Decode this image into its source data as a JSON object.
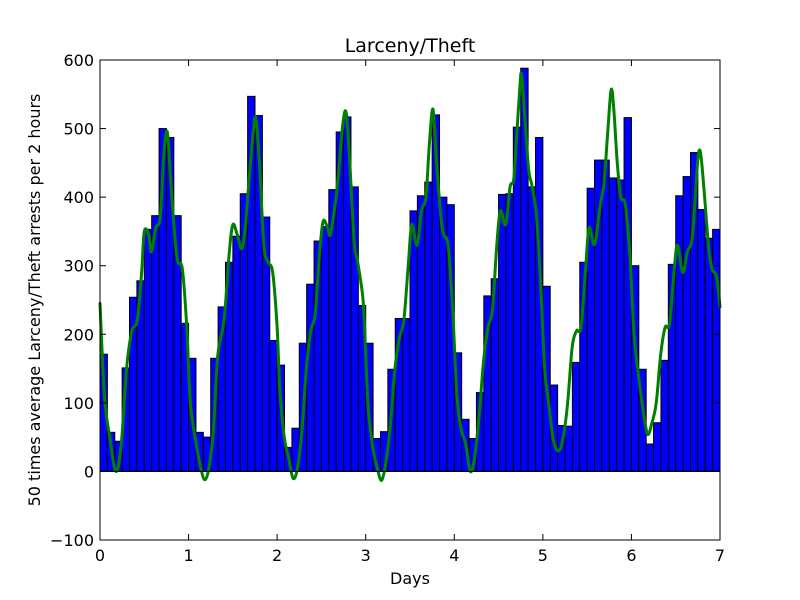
{
  "chart_data": {
    "type": "bar",
    "title": "Larceny/Theft",
    "xlabel": "Days",
    "ylabel": "50 times average Larceny/Theft arrests per 2 hours",
    "xlim": [
      0,
      7
    ],
    "ylim": [
      -100,
      600
    ],
    "x_ticks": [
      "0",
      "1",
      "2",
      "3",
      "4",
      "5",
      "6",
      "7"
    ],
    "y_ticks": [
      "−100",
      "0",
      "100",
      "200",
      "300",
      "400",
      "500",
      "600"
    ],
    "grid": false,
    "bar_color": "#0000ff",
    "line_color": "#008000",
    "bin_width_days": 0.0833,
    "bars": [
      171,
      57,
      44,
      151,
      254,
      278,
      353,
      373,
      500,
      487,
      373,
      216,
      165,
      57,
      50,
      165,
      240,
      305,
      343,
      405,
      547,
      519,
      371,
      191,
      155,
      35,
      63,
      187,
      273,
      336,
      357,
      411,
      495,
      517,
      415,
      242,
      187,
      48,
      58,
      149,
      223,
      223,
      380,
      402,
      422,
      520,
      400,
      389,
      173,
      76,
      48,
      115,
      256,
      281,
      404,
      405,
      502,
      588,
      415,
      487,
      270,
      126,
      67,
      66,
      159,
      305,
      413,
      454,
      454,
      428,
      425,
      516,
      300,
      149,
      40,
      71,
      162,
      302,
      402,
      430,
      465,
      382,
      340,
      353
    ],
    "smooth_line": [
      [
        0.0,
        245
      ],
      [
        0.05,
        110
      ],
      [
        0.11,
        50
      ],
      [
        0.18,
        0
      ],
      [
        0.24,
        40
      ],
      [
        0.3,
        150
      ],
      [
        0.36,
        205
      ],
      [
        0.42,
        220
      ],
      [
        0.47,
        290
      ],
      [
        0.5,
        350
      ],
      [
        0.55,
        345
      ],
      [
        0.58,
        320
      ],
      [
        0.63,
        355
      ],
      [
        0.68,
        370
      ],
      [
        0.72,
        460
      ],
      [
        0.76,
        495
      ],
      [
        0.8,
        420
      ],
      [
        0.85,
        335
      ],
      [
        0.88,
        305
      ],
      [
        0.93,
        295
      ],
      [
        0.98,
        210
      ],
      [
        1.02,
        100
      ],
      [
        1.08,
        45
      ],
      [
        1.13,
        10
      ],
      [
        1.18,
        -12
      ],
      [
        1.23,
        5
      ],
      [
        1.28,
        60
      ],
      [
        1.33,
        170
      ],
      [
        1.4,
        220
      ],
      [
        1.46,
        320
      ],
      [
        1.5,
        360
      ],
      [
        1.55,
        345
      ],
      [
        1.6,
        325
      ],
      [
        1.64,
        355
      ],
      [
        1.68,
        420
      ],
      [
        1.73,
        495
      ],
      [
        1.76,
        515
      ],
      [
        1.8,
        450
      ],
      [
        1.85,
        330
      ],
      [
        1.9,
        305
      ],
      [
        1.95,
        290
      ],
      [
        2.0,
        210
      ],
      [
        2.03,
        120
      ],
      [
        2.08,
        50
      ],
      [
        2.13,
        20
      ],
      [
        2.18,
        -10
      ],
      [
        2.23,
        5
      ],
      [
        2.28,
        60
      ],
      [
        2.33,
        150
      ],
      [
        2.38,
        205
      ],
      [
        2.43,
        230
      ],
      [
        2.48,
        320
      ],
      [
        2.52,
        365
      ],
      [
        2.57,
        355
      ],
      [
        2.6,
        345
      ],
      [
        2.65,
        385
      ],
      [
        2.69,
        430
      ],
      [
        2.74,
        505
      ],
      [
        2.78,
        523
      ],
      [
        2.82,
        450
      ],
      [
        2.87,
        335
      ],
      [
        2.91,
        305
      ],
      [
        2.97,
        250
      ],
      [
        3.0,
        170
      ],
      [
        3.03,
        90
      ],
      [
        3.08,
        35
      ],
      [
        3.13,
        5
      ],
      [
        3.18,
        -13
      ],
      [
        3.23,
        15
      ],
      [
        3.28,
        70
      ],
      [
        3.33,
        150
      ],
      [
        3.38,
        195
      ],
      [
        3.43,
        220
      ],
      [
        3.48,
        300
      ],
      [
        3.52,
        360
      ],
      [
        3.58,
        330
      ],
      [
        3.63,
        380
      ],
      [
        3.68,
        400
      ],
      [
        3.72,
        480
      ],
      [
        3.76,
        528
      ],
      [
        3.8,
        450
      ],
      [
        3.85,
        370
      ],
      [
        3.88,
        345
      ],
      [
        3.93,
        330
      ],
      [
        3.98,
        240
      ],
      [
        4.03,
        110
      ],
      [
        4.08,
        60
      ],
      [
        4.13,
        40
      ],
      [
        4.18,
        0
      ],
      [
        4.23,
        20
      ],
      [
        4.28,
        80
      ],
      [
        4.33,
        160
      ],
      [
        4.38,
        210
      ],
      [
        4.43,
        235
      ],
      [
        4.48,
        330
      ],
      [
        4.52,
        380
      ],
      [
        4.58,
        360
      ],
      [
        4.63,
        415
      ],
      [
        4.67,
        425
      ],
      [
        4.7,
        480
      ],
      [
        4.74,
        560
      ],
      [
        4.76,
        578
      ],
      [
        4.8,
        510
      ],
      [
        4.84,
        440
      ],
      [
        4.88,
        415
      ],
      [
        4.93,
        370
      ],
      [
        4.98,
        260
      ],
      [
        5.02,
        150
      ],
      [
        5.06,
        105
      ],
      [
        5.12,
        45
      ],
      [
        5.18,
        30
      ],
      [
        5.23,
        50
      ],
      [
        5.28,
        100
      ],
      [
        5.33,
        180
      ],
      [
        5.38,
        205
      ],
      [
        5.43,
        210
      ],
      [
        5.48,
        290
      ],
      [
        5.52,
        355
      ],
      [
        5.57,
        332
      ],
      [
        5.6,
        340
      ],
      [
        5.65,
        390
      ],
      [
        5.69,
        420
      ],
      [
        5.73,
        490
      ],
      [
        5.77,
        556
      ],
      [
        5.8,
        530
      ],
      [
        5.84,
        450
      ],
      [
        5.88,
        400
      ],
      [
        5.93,
        390
      ],
      [
        5.98,
        320
      ],
      [
        6.03,
        200
      ],
      [
        6.08,
        140
      ],
      [
        6.12,
        100
      ],
      [
        6.18,
        55
      ],
      [
        6.23,
        70
      ],
      [
        6.28,
        100
      ],
      [
        6.33,
        170
      ],
      [
        6.38,
        210
      ],
      [
        6.43,
        215
      ],
      [
        6.48,
        290
      ],
      [
        6.52,
        330
      ],
      [
        6.58,
        290
      ],
      [
        6.63,
        320
      ],
      [
        6.68,
        335
      ],
      [
        6.71,
        380
      ],
      [
        6.75,
        455
      ],
      [
        6.78,
        465
      ],
      [
        6.82,
        410
      ],
      [
        6.87,
        330
      ],
      [
        6.91,
        295
      ],
      [
        6.96,
        285
      ],
      [
        7.0,
        240
      ]
    ]
  }
}
